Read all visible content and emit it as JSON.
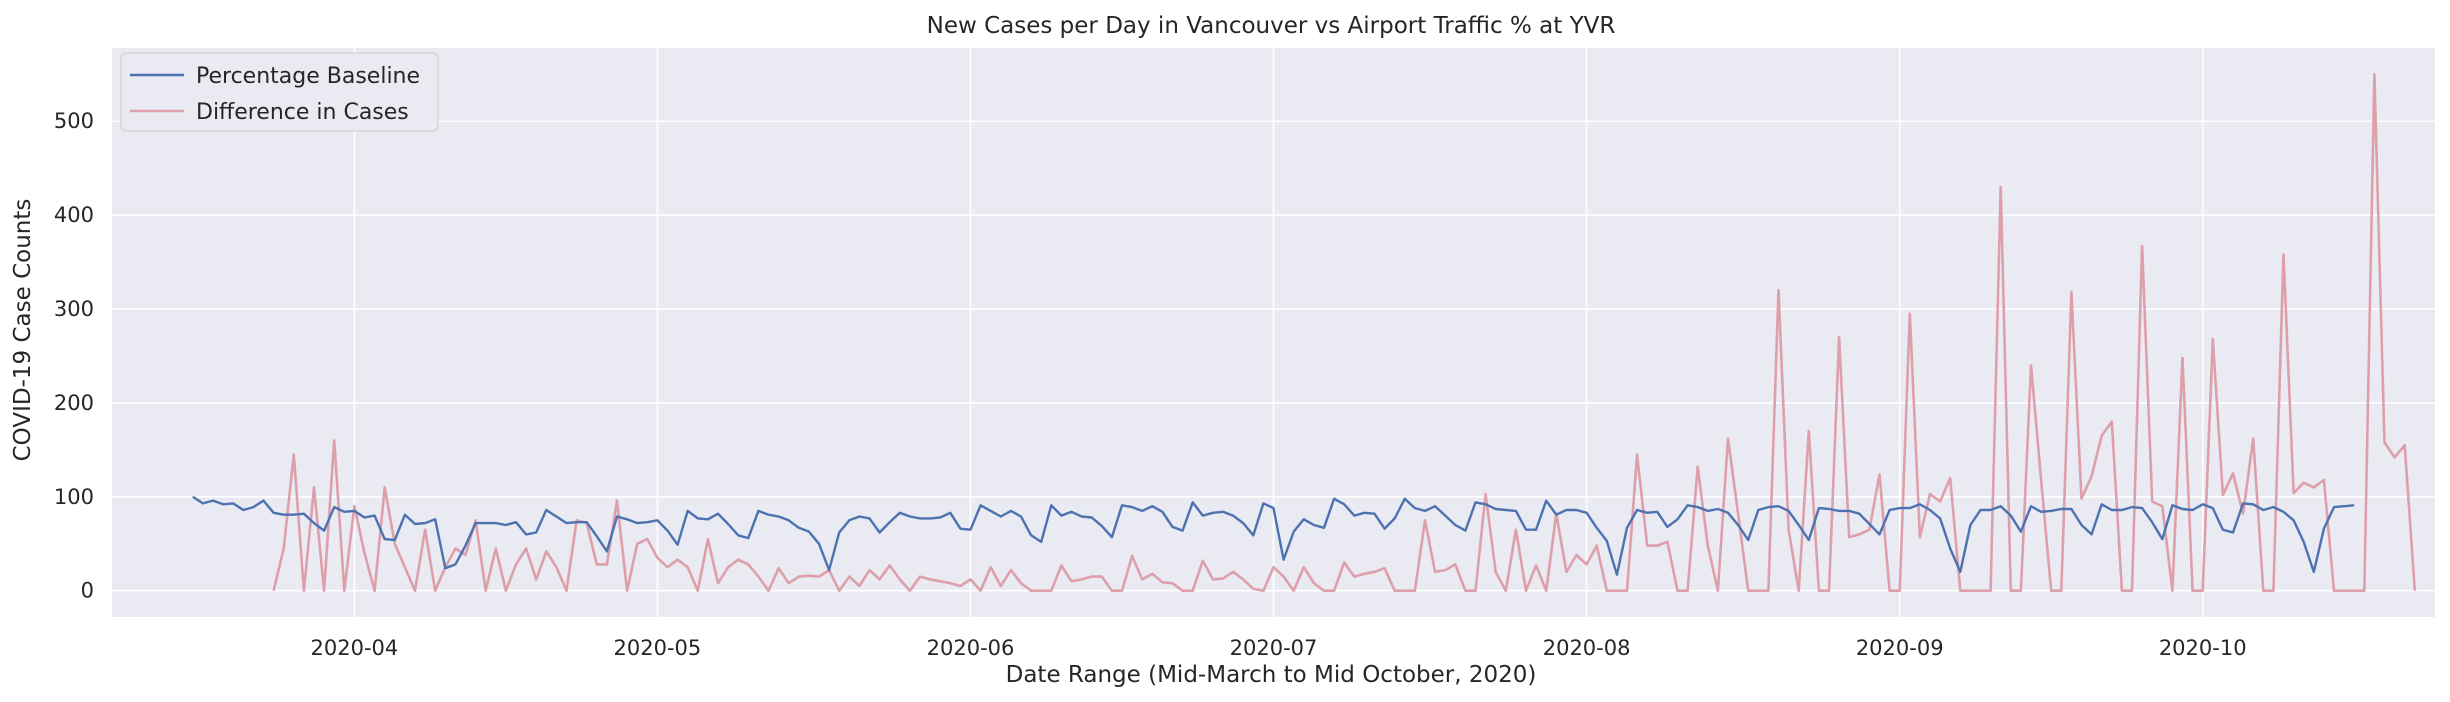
{
  "chart_data": {
    "type": "line",
    "title": "New Cases per Day in Vancouver vs Airport Traffic % at YVR",
    "xlabel": "Date Range (Mid-March to Mid October, 2020)",
    "ylabel": "COVID-19 Case Counts",
    "x_range": [
      "2020-03-08",
      "2020-10-24"
    ],
    "ylim": [
      -28,
      578
    ],
    "y_ticks": [
      0,
      100,
      200,
      300,
      400,
      500
    ],
    "x_ticks": [
      {
        "date": "2020-04-01",
        "label": "2020-04"
      },
      {
        "date": "2020-05-01",
        "label": "2020-05"
      },
      {
        "date": "2020-06-01",
        "label": "2020-06"
      },
      {
        "date": "2020-07-01",
        "label": "2020-07"
      },
      {
        "date": "2020-08-01",
        "label": "2020-08"
      },
      {
        "date": "2020-09-01",
        "label": "2020-09"
      },
      {
        "date": "2020-10-01",
        "label": "2020-10"
      }
    ],
    "grid": true,
    "legend_position": "top-left",
    "background": "#eaeaf2",
    "series": [
      {
        "name": "Percentage Baseline",
        "color": "#4c72b0",
        "start_date": "2020-03-16",
        "values": [
          100,
          93,
          96,
          92,
          93,
          86,
          89,
          96,
          83,
          81,
          81,
          82,
          72,
          64,
          89,
          84,
          85,
          78,
          80,
          55,
          54,
          81,
          71,
          72,
          76,
          24,
          28,
          48,
          72,
          72,
          72,
          70,
          73,
          60,
          62,
          86,
          79,
          72,
          73,
          73,
          58,
          42,
          79,
          76,
          72,
          73,
          75,
          64,
          49,
          85,
          77,
          76,
          82,
          71,
          59,
          56,
          85,
          81,
          79,
          75,
          67,
          63,
          50,
          22,
          62,
          75,
          79,
          77,
          62,
          73,
          83,
          79,
          77,
          77,
          78,
          83,
          66,
          65,
          91,
          85,
          79,
          85,
          79,
          59,
          52,
          91,
          80,
          84,
          79,
          78,
          69,
          57,
          91,
          89,
          85,
          90,
          84,
          68,
          64,
          94,
          80,
          83,
          84,
          80,
          72,
          59,
          93,
          88,
          33,
          63,
          76,
          70,
          67,
          98,
          92,
          80,
          83,
          82,
          66,
          77,
          98,
          88,
          85,
          90,
          80,
          70,
          64,
          94,
          92,
          87,
          86,
          85,
          65,
          65,
          96,
          81,
          86,
          86,
          83,
          67,
          53,
          17,
          67,
          86,
          83,
          84,
          68,
          76,
          91,
          89,
          85,
          87,
          83,
          70,
          54,
          86,
          89,
          90,
          85,
          70,
          54,
          88,
          87,
          85,
          85,
          82,
          71,
          60,
          86,
          88,
          88,
          92,
          86,
          77,
          45,
          20,
          70,
          86,
          86,
          90,
          80,
          63,
          90,
          84,
          85,
          87,
          87,
          70,
          60,
          92,
          86,
          86,
          89,
          88,
          73,
          55,
          91,
          87,
          86,
          92,
          88,
          65,
          62,
          93,
          92,
          86,
          89,
          84,
          75,
          52,
          20,
          66,
          89,
          90,
          91
        ]
      },
      {
        "name": "Difference in Cases",
        "color": "#dda0ab",
        "start_date": "2020-03-24",
        "values": [
          0,
          45,
          145,
          0,
          110,
          0,
          160,
          0,
          90,
          40,
          0,
          110,
          50,
          25,
          0,
          65,
          0,
          25,
          45,
          38,
          75,
          0,
          45,
          0,
          28,
          45,
          12,
          42,
          25,
          0,
          75,
          72,
          28,
          28,
          96,
          0,
          50,
          55,
          35,
          25,
          33,
          25,
          0,
          55,
          8,
          25,
          33,
          28,
          15,
          0,
          24,
          8,
          15,
          16,
          15,
          22,
          0,
          15,
          5,
          22,
          12,
          27,
          12,
          0,
          15,
          12,
          10,
          8,
          5,
          12,
          0,
          25,
          5,
          22,
          8,
          0,
          0,
          0,
          27,
          10,
          12,
          15,
          15,
          0,
          0,
          37,
          12,
          18,
          9,
          8,
          0,
          0,
          32,
          12,
          13,
          20,
          12,
          2,
          0,
          25,
          15,
          0,
          25,
          8,
          0,
          0,
          30,
          15,
          18,
          20,
          24,
          0,
          0,
          0,
          75,
          20,
          22,
          28,
          0,
          0,
          103,
          20,
          0,
          65,
          0,
          27,
          0,
          82,
          20,
          38,
          28,
          48,
          0,
          0,
          0,
          145,
          48,
          48,
          52,
          0,
          0,
          132,
          48,
          0,
          162,
          82,
          0,
          0,
          0,
          320,
          65,
          0,
          170,
          0,
          0,
          270,
          57,
          60,
          65,
          124,
          0,
          0,
          295,
          57,
          103,
          95,
          120,
          0,
          0,
          0,
          0,
          430,
          0,
          0,
          240,
          118,
          0,
          0,
          318,
          98,
          122,
          165,
          180,
          0,
          0,
          367,
          95,
          90,
          0,
          248,
          0,
          0,
          268,
          102,
          125,
          82,
          162,
          0,
          0,
          358,
          104,
          115,
          110,
          118,
          0,
          0,
          0,
          0,
          550,
          158,
          142,
          155,
          0
        ]
      }
    ]
  }
}
